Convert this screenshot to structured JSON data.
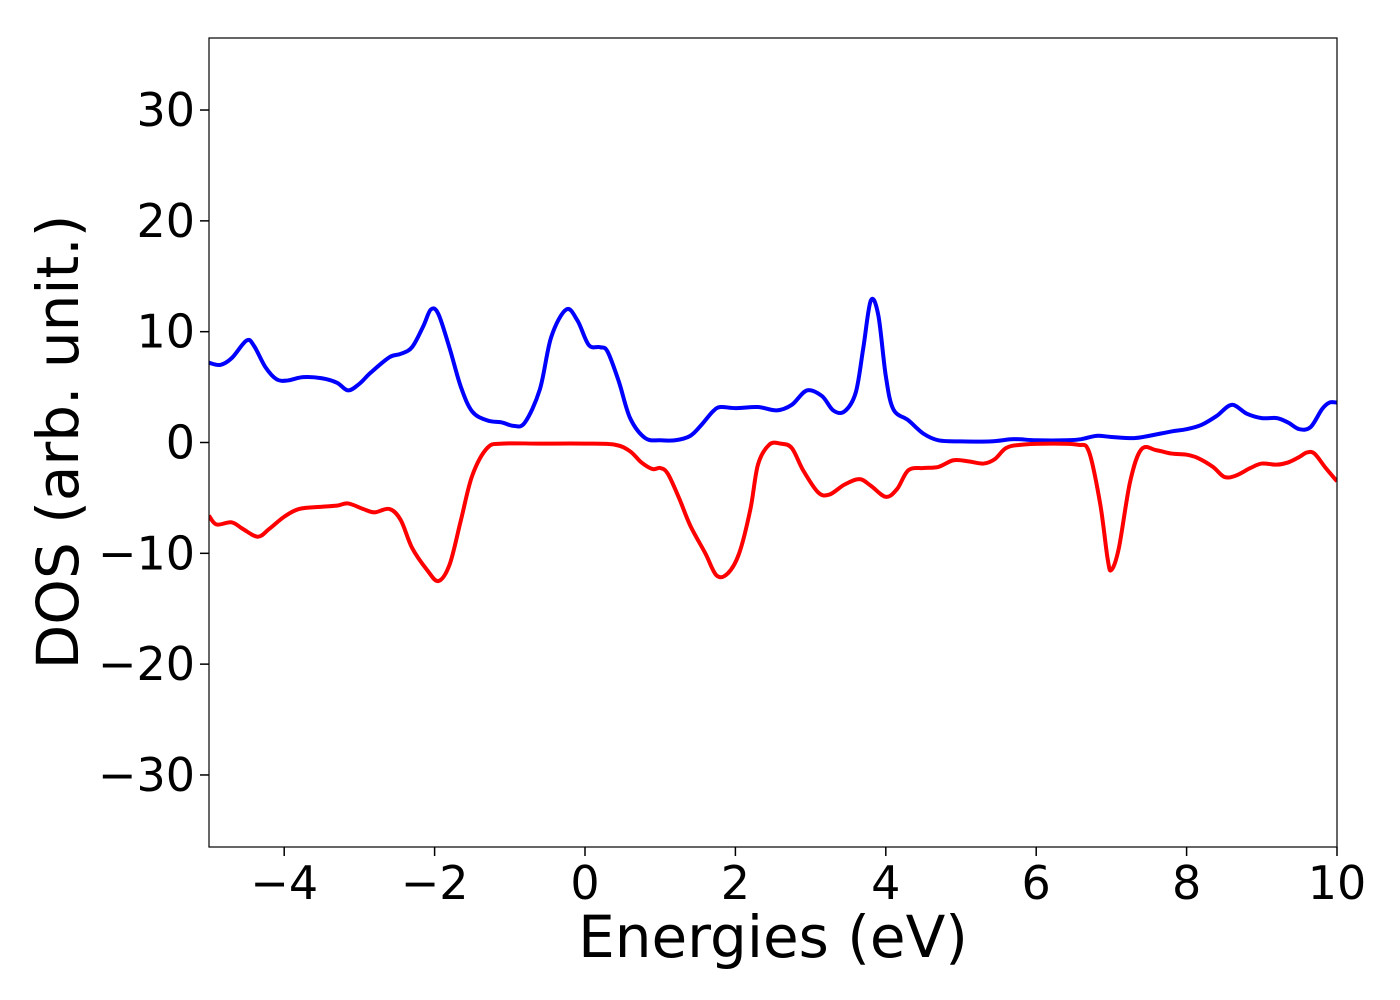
{
  "chart_data": {
    "type": "line",
    "title": "",
    "xlabel": "Energies (eV)",
    "ylabel": "DOS (arb. unit.)",
    "xlim": [
      -5,
      10
    ],
    "ylim": [
      -36.5,
      36.5
    ],
    "x_ticks": [
      -4,
      -2,
      0,
      2,
      4,
      6,
      8,
      10
    ],
    "x_tick_labels": [
      "−4",
      "−2",
      "0",
      "2",
      "4",
      "6",
      "8",
      "10"
    ],
    "y_ticks": [
      -30,
      -20,
      -10,
      0,
      10,
      20,
      30
    ],
    "y_tick_labels": [
      "−30",
      "−20",
      "−10",
      "0",
      "10",
      "20",
      "30"
    ],
    "grid": false,
    "legend": "none",
    "series": [
      {
        "color": "#0000ff",
        "points": [
          [
            -5.0,
            7.2
          ],
          [
            -4.85,
            7.0
          ],
          [
            -4.7,
            7.6
          ],
          [
            -4.5,
            9.2
          ],
          [
            -4.4,
            8.7
          ],
          [
            -4.25,
            6.8
          ],
          [
            -4.1,
            5.7
          ],
          [
            -3.95,
            5.6
          ],
          [
            -3.75,
            5.9
          ],
          [
            -3.5,
            5.8
          ],
          [
            -3.3,
            5.4
          ],
          [
            -3.15,
            4.7
          ],
          [
            -3.0,
            5.3
          ],
          [
            -2.85,
            6.3
          ],
          [
            -2.6,
            7.7
          ],
          [
            -2.45,
            8.0
          ],
          [
            -2.3,
            8.6
          ],
          [
            -2.15,
            10.5
          ],
          [
            -2.05,
            12.0
          ],
          [
            -1.95,
            11.6
          ],
          [
            -1.8,
            8.5
          ],
          [
            -1.65,
            5.0
          ],
          [
            -1.5,
            2.8
          ],
          [
            -1.3,
            2.0
          ],
          [
            -1.1,
            1.8
          ],
          [
            -0.95,
            1.5
          ],
          [
            -0.8,
            1.8
          ],
          [
            -0.6,
            4.8
          ],
          [
            -0.45,
            9.5
          ],
          [
            -0.25,
            12.0
          ],
          [
            -0.1,
            11.0
          ],
          [
            0.05,
            8.8
          ],
          [
            0.2,
            8.6
          ],
          [
            0.3,
            8.2
          ],
          [
            0.45,
            5.5
          ],
          [
            0.6,
            2.2
          ],
          [
            0.8,
            0.4
          ],
          [
            1.0,
            0.2
          ],
          [
            1.2,
            0.2
          ],
          [
            1.4,
            0.6
          ],
          [
            1.55,
            1.6
          ],
          [
            1.7,
            2.8
          ],
          [
            1.8,
            3.2
          ],
          [
            2.0,
            3.1
          ],
          [
            2.3,
            3.2
          ],
          [
            2.55,
            2.9
          ],
          [
            2.75,
            3.4
          ],
          [
            2.95,
            4.7
          ],
          [
            3.15,
            4.2
          ],
          [
            3.3,
            2.9
          ],
          [
            3.45,
            2.8
          ],
          [
            3.6,
            4.5
          ],
          [
            3.7,
            8.5
          ],
          [
            3.8,
            12.8
          ],
          [
            3.9,
            11.5
          ],
          [
            4.0,
            6.0
          ],
          [
            4.1,
            3.0
          ],
          [
            4.3,
            2.0
          ],
          [
            4.5,
            0.8
          ],
          [
            4.7,
            0.2
          ],
          [
            5.0,
            0.1
          ],
          [
            5.4,
            0.1
          ],
          [
            5.7,
            0.3
          ],
          [
            6.0,
            0.2
          ],
          [
            6.4,
            0.2
          ],
          [
            6.6,
            0.3
          ],
          [
            6.8,
            0.6
          ],
          [
            7.0,
            0.5
          ],
          [
            7.3,
            0.4
          ],
          [
            7.5,
            0.6
          ],
          [
            7.8,
            1.0
          ],
          [
            8.0,
            1.2
          ],
          [
            8.2,
            1.6
          ],
          [
            8.4,
            2.4
          ],
          [
            8.6,
            3.4
          ],
          [
            8.8,
            2.6
          ],
          [
            9.0,
            2.2
          ],
          [
            9.2,
            2.2
          ],
          [
            9.35,
            1.8
          ],
          [
            9.5,
            1.2
          ],
          [
            9.65,
            1.4
          ],
          [
            9.8,
            3.0
          ],
          [
            9.9,
            3.6
          ],
          [
            10.0,
            3.6
          ]
        ]
      },
      {
        "color": "#ff0000",
        "points": [
          [
            -5.0,
            -6.6
          ],
          [
            -4.9,
            -7.4
          ],
          [
            -4.7,
            -7.2
          ],
          [
            -4.55,
            -7.8
          ],
          [
            -4.35,
            -8.5
          ],
          [
            -4.2,
            -7.8
          ],
          [
            -4.0,
            -6.7
          ],
          [
            -3.8,
            -6.0
          ],
          [
            -3.5,
            -5.8
          ],
          [
            -3.3,
            -5.7
          ],
          [
            -3.15,
            -5.5
          ],
          [
            -2.95,
            -6.0
          ],
          [
            -2.8,
            -6.3
          ],
          [
            -2.6,
            -6.0
          ],
          [
            -2.45,
            -7.0
          ],
          [
            -2.3,
            -9.5
          ],
          [
            -2.1,
            -11.5
          ],
          [
            -1.95,
            -12.5
          ],
          [
            -1.8,
            -11.0
          ],
          [
            -1.65,
            -7.0
          ],
          [
            -1.5,
            -3.0
          ],
          [
            -1.3,
            -0.5
          ],
          [
            -1.1,
            -0.1
          ],
          [
            -0.6,
            -0.1
          ],
          [
            0.0,
            -0.1
          ],
          [
            0.4,
            -0.2
          ],
          [
            0.6,
            -0.8
          ],
          [
            0.75,
            -1.8
          ],
          [
            0.9,
            -2.4
          ],
          [
            1.0,
            -2.3
          ],
          [
            1.1,
            -2.8
          ],
          [
            1.25,
            -5.0
          ],
          [
            1.4,
            -7.5
          ],
          [
            1.6,
            -10.0
          ],
          [
            1.75,
            -12.0
          ],
          [
            1.9,
            -11.8
          ],
          [
            2.05,
            -10.0
          ],
          [
            2.2,
            -6.0
          ],
          [
            2.3,
            -2.0
          ],
          [
            2.45,
            -0.2
          ],
          [
            2.6,
            -0.1
          ],
          [
            2.75,
            -0.5
          ],
          [
            2.9,
            -2.5
          ],
          [
            3.1,
            -4.5
          ],
          [
            3.25,
            -4.7
          ],
          [
            3.45,
            -3.8
          ],
          [
            3.65,
            -3.3
          ],
          [
            3.8,
            -3.9
          ],
          [
            4.0,
            -4.9
          ],
          [
            4.15,
            -4.2
          ],
          [
            4.3,
            -2.5
          ],
          [
            4.5,
            -2.3
          ],
          [
            4.7,
            -2.2
          ],
          [
            4.9,
            -1.6
          ],
          [
            5.1,
            -1.7
          ],
          [
            5.3,
            -1.9
          ],
          [
            5.45,
            -1.5
          ],
          [
            5.6,
            -0.5
          ],
          [
            5.8,
            -0.2
          ],
          [
            6.2,
            -0.1
          ],
          [
            6.55,
            -0.2
          ],
          [
            6.7,
            -0.8
          ],
          [
            6.85,
            -5.5
          ],
          [
            6.95,
            -10.5
          ],
          [
            7.0,
            -11.5
          ],
          [
            7.1,
            -9.5
          ],
          [
            7.25,
            -3.5
          ],
          [
            7.4,
            -0.6
          ],
          [
            7.6,
            -0.7
          ],
          [
            7.8,
            -1.0
          ],
          [
            8.0,
            -1.1
          ],
          [
            8.15,
            -1.4
          ],
          [
            8.35,
            -2.2
          ],
          [
            8.5,
            -3.1
          ],
          [
            8.65,
            -3.0
          ],
          [
            8.85,
            -2.3
          ],
          [
            9.0,
            -1.9
          ],
          [
            9.2,
            -2.0
          ],
          [
            9.35,
            -1.8
          ],
          [
            9.5,
            -1.3
          ],
          [
            9.6,
            -0.9
          ],
          [
            9.7,
            -1.0
          ],
          [
            9.85,
            -2.3
          ],
          [
            10.0,
            -3.5
          ]
        ]
      }
    ]
  }
}
